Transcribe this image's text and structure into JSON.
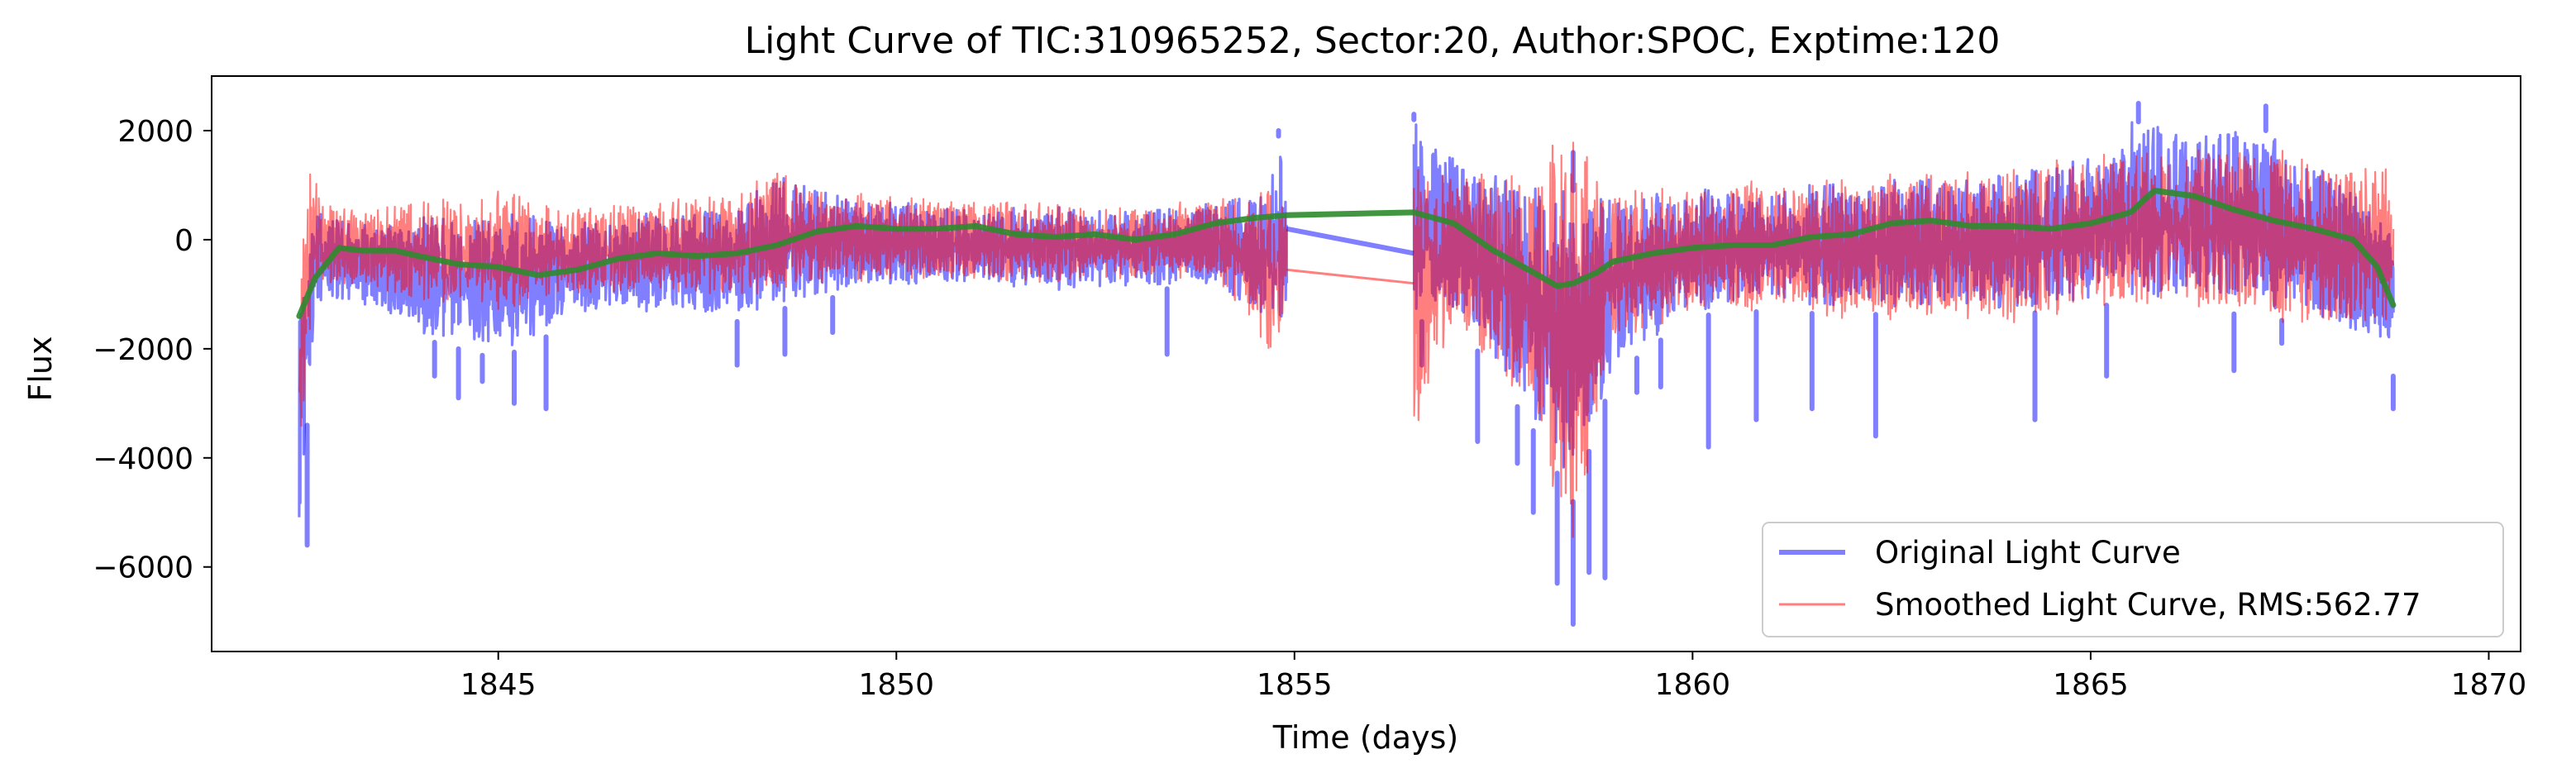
{
  "chart_data": {
    "type": "line",
    "title": "Light Curve of TIC:310965252, Sector:20, Author:SPOC, Exptime:120",
    "xlabel": "Time (days)",
    "ylabel": "Flux",
    "xlim": [
      1841.4,
      1870.4
    ],
    "ylim": [
      -7550,
      3000
    ],
    "x_ticks": [
      1845,
      1850,
      1855,
      1860,
      1865,
      1870
    ],
    "x_tick_labels": [
      "1845",
      "1850",
      "1855",
      "1860",
      "1865",
      "1870"
    ],
    "y_ticks": [
      2000,
      0,
      -2000,
      -4000,
      -6000
    ],
    "y_tick_labels": [
      "2000",
      "0",
      "−2000",
      "−4000",
      "−6000"
    ],
    "grid": false,
    "legend_position": "lower-right",
    "series": [
      {
        "name": "Original Light Curve",
        "color": "#0000ff",
        "alpha": 0.5,
        "style": "noisy-band",
        "x_range": [
          1842.5,
          1868.8
        ],
        "gap": [
          1854.9,
          1856.5
        ],
        "band_upper": [
          [
            1842.5,
            -1200
          ],
          [
            1842.7,
            500
          ],
          [
            1843.0,
            400
          ],
          [
            1844.0,
            400
          ],
          [
            1845.0,
            500
          ],
          [
            1846.0,
            400
          ],
          [
            1847.0,
            500
          ],
          [
            1848.0,
            600
          ],
          [
            1848.5,
            1200
          ],
          [
            1849.0,
            900
          ],
          [
            1850.0,
            700
          ],
          [
            1851.0,
            600
          ],
          [
            1852.0,
            600
          ],
          [
            1853.0,
            500
          ],
          [
            1854.0,
            700
          ],
          [
            1854.6,
            900
          ],
          [
            1854.8,
            1900
          ],
          [
            1854.9,
            1000
          ],
          [
            1856.5,
            2200
          ],
          [
            1857.0,
            1600
          ],
          [
            1858.0,
            1000
          ],
          [
            1859.0,
            800
          ],
          [
            1860.0,
            900
          ],
          [
            1861.0,
            1000
          ],
          [
            1862.0,
            1100
          ],
          [
            1863.0,
            1100
          ],
          [
            1864.0,
            1200
          ],
          [
            1865.0,
            1500
          ],
          [
            1865.5,
            2200
          ],
          [
            1866.0,
            2000
          ],
          [
            1867.0,
            2200
          ],
          [
            1868.0,
            1200
          ],
          [
            1868.8,
            600
          ]
        ],
        "band_lower": [
          [
            1842.5,
            -5600
          ],
          [
            1842.7,
            -1200
          ],
          [
            1843.0,
            -1200
          ],
          [
            1844.0,
            -1800
          ],
          [
            1845.0,
            -2200
          ],
          [
            1846.0,
            -1500
          ],
          [
            1847.0,
            -1400
          ],
          [
            1848.0,
            -1500
          ],
          [
            1849.0,
            -1100
          ],
          [
            1850.0,
            -900
          ],
          [
            1851.0,
            -900
          ],
          [
            1852.0,
            -1000
          ],
          [
            1853.0,
            -900
          ],
          [
            1854.0,
            -900
          ],
          [
            1854.8,
            -1800
          ],
          [
            1854.9,
            -1600
          ],
          [
            1856.5,
            -1500
          ],
          [
            1857.0,
            -1500
          ],
          [
            1857.5,
            -2400
          ],
          [
            1858.0,
            -3500
          ],
          [
            1858.5,
            -4800
          ],
          [
            1859.0,
            -2500
          ],
          [
            1860.0,
            -1400
          ],
          [
            1861.0,
            -1300
          ],
          [
            1862.0,
            -1400
          ],
          [
            1863.0,
            -1300
          ],
          [
            1864.0,
            -1400
          ],
          [
            1865.0,
            -1200
          ],
          [
            1866.0,
            -1200
          ],
          [
            1867.0,
            -1400
          ],
          [
            1868.0,
            -1600
          ],
          [
            1868.8,
            -2500
          ]
        ],
        "gap_connector": [
          [
            1854.9,
            200
          ],
          [
            1856.5,
            -250
          ]
        ],
        "dips": [
          [
            1842.6,
            -5600
          ],
          [
            1844.2,
            -2500
          ],
          [
            1844.5,
            -2900
          ],
          [
            1844.8,
            -2600
          ],
          [
            1845.2,
            -3000
          ],
          [
            1845.6,
            -3100
          ],
          [
            1848.0,
            -2300
          ],
          [
            1848.6,
            -2100
          ],
          [
            1849.2,
            -1700
          ],
          [
            1853.4,
            -2100
          ],
          [
            1856.6,
            -2300
          ],
          [
            1857.3,
            -3700
          ],
          [
            1857.8,
            -4100
          ],
          [
            1858.0,
            -5000
          ],
          [
            1858.3,
            -6300
          ],
          [
            1858.5,
            -7050
          ],
          [
            1858.7,
            -6100
          ],
          [
            1858.9,
            -6200
          ],
          [
            1859.3,
            -2800
          ],
          [
            1859.6,
            -2700
          ],
          [
            1860.2,
            -3800
          ],
          [
            1860.8,
            -3300
          ],
          [
            1861.5,
            -3100
          ],
          [
            1862.3,
            -3600
          ],
          [
            1864.3,
            -3300
          ],
          [
            1865.2,
            -2500
          ],
          [
            1866.8,
            -2400
          ],
          [
            1867.4,
            -1900
          ],
          [
            1868.8,
            -3100
          ]
        ],
        "spikes": [
          [
            1856.5,
            2300
          ],
          [
            1865.6,
            2500
          ],
          [
            1867.2,
            2450
          ],
          [
            1854.8,
            2000
          ],
          [
            1858.5,
            1600
          ]
        ]
      },
      {
        "name": "Smoothed Light Curve, RMS:562.77",
        "color": "#ff0000",
        "alpha": 0.5,
        "style": "noisy-band",
        "x_range": [
          1842.5,
          1868.8
        ],
        "gap": [
          1854.9,
          1856.5
        ],
        "band_upper": [
          [
            1842.5,
            -1200
          ],
          [
            1842.6,
            1550
          ],
          [
            1842.8,
            700
          ],
          [
            1843.0,
            600
          ],
          [
            1844.0,
            700
          ],
          [
            1845.0,
            900
          ],
          [
            1846.0,
            600
          ],
          [
            1847.0,
            700
          ],
          [
            1848.0,
            900
          ],
          [
            1848.5,
            1300
          ],
          [
            1849.0,
            900
          ],
          [
            1850.0,
            800
          ],
          [
            1851.0,
            700
          ],
          [
            1852.0,
            700
          ],
          [
            1853.0,
            600
          ],
          [
            1854.0,
            800
          ],
          [
            1854.8,
            1100
          ],
          [
            1854.9,
            600
          ],
          [
            1856.5,
            1500
          ],
          [
            1857.0,
            1200
          ],
          [
            1858.0,
            1200
          ],
          [
            1858.5,
            2300
          ],
          [
            1859.0,
            900
          ],
          [
            1860.0,
            1000
          ],
          [
            1861.0,
            1100
          ],
          [
            1862.0,
            1200
          ],
          [
            1863.0,
            1200
          ],
          [
            1864.0,
            1300
          ],
          [
            1865.0,
            1600
          ],
          [
            1866.0,
            1700
          ],
          [
            1867.0,
            1800
          ],
          [
            1868.0,
            1400
          ],
          [
            1868.8,
            1600
          ]
        ],
        "band_lower": [
          [
            1842.5,
            -4300
          ],
          [
            1842.7,
            -900
          ],
          [
            1843.0,
            -900
          ],
          [
            1844.0,
            -1200
          ],
          [
            1845.0,
            -1400
          ],
          [
            1846.0,
            -1100
          ],
          [
            1847.0,
            -1000
          ],
          [
            1848.0,
            -1200
          ],
          [
            1849.0,
            -900
          ],
          [
            1850.0,
            -800
          ],
          [
            1851.0,
            -800
          ],
          [
            1852.0,
            -900
          ],
          [
            1853.0,
            -800
          ],
          [
            1854.0,
            -800
          ],
          [
            1854.8,
            -2600
          ],
          [
            1854.9,
            -700
          ],
          [
            1856.5,
            -4000
          ],
          [
            1857.0,
            -1600
          ],
          [
            1858.0,
            -3400
          ],
          [
            1858.5,
            -6400
          ],
          [
            1859.0,
            -2000
          ],
          [
            1860.0,
            -1500
          ],
          [
            1861.0,
            -1400
          ],
          [
            1862.0,
            -1700
          ],
          [
            1863.0,
            -1500
          ],
          [
            1864.0,
            -1700
          ],
          [
            1865.0,
            -1400
          ],
          [
            1866.0,
            -1400
          ],
          [
            1867.0,
            -1600
          ],
          [
            1868.0,
            -1800
          ],
          [
            1868.8,
            -1900
          ]
        ],
        "gap_connector": [
          [
            1854.9,
            -550
          ],
          [
            1856.5,
            -800
          ]
        ]
      },
      {
        "name": "",
        "color": "#2e8b2e",
        "style": "trend",
        "x": [
          1842.5,
          1842.7,
          1843.0,
          1843.3,
          1843.7,
          1844.0,
          1844.5,
          1845.0,
          1845.5,
          1846.0,
          1846.5,
          1847.0,
          1847.5,
          1848.0,
          1848.5,
          1849.0,
          1849.5,
          1850.0,
          1850.5,
          1851.0,
          1851.5,
          1852.0,
          1852.5,
          1853.0,
          1853.5,
          1854.0,
          1854.5,
          1854.9,
          1856.5,
          1857.0,
          1857.5,
          1858.0,
          1858.3,
          1858.5,
          1858.8,
          1859.0,
          1859.5,
          1860.0,
          1860.5,
          1861.0,
          1861.5,
          1862.0,
          1862.5,
          1863.0,
          1863.5,
          1864.0,
          1864.5,
          1865.0,
          1865.5,
          1865.8,
          1866.3,
          1866.8,
          1867.3,
          1867.8,
          1868.3,
          1868.6,
          1868.8
        ],
        "y": [
          -1400,
          -700,
          -150,
          -200,
          -200,
          -300,
          -450,
          -500,
          -650,
          -550,
          -350,
          -250,
          -300,
          -250,
          -100,
          150,
          250,
          200,
          200,
          250,
          100,
          50,
          100,
          0,
          100,
          300,
          400,
          450,
          500,
          300,
          -200,
          -600,
          -850,
          -800,
          -600,
          -400,
          -250,
          -150,
          -100,
          -100,
          50,
          100,
          300,
          350,
          250,
          250,
          200,
          300,
          500,
          900,
          800,
          550,
          350,
          200,
          0,
          -500,
          -1200
        ]
      }
    ]
  }
}
